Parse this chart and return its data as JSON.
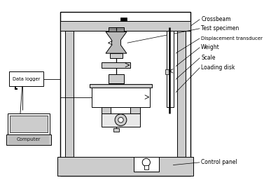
{
  "bg_color": "#ffffff",
  "line_color": "#000000",
  "gray_fill": "#bbbbbb",
  "light_gray": "#cccccc",
  "dark_gray": "#888888",
  "lighter_gray": "#e8e8e8",
  "labels": {
    "crossbeam": "Crossbeam",
    "test_specimen": "Test specimen",
    "displacement_transducer": "Displacement transducer",
    "weight": "Weight",
    "scale": "Scale",
    "loading_disk": "Loading disk",
    "control_panel": "Control panel",
    "data_logger": "Data logger",
    "computer": "Computer"
  },
  "figsize": [
    3.87,
    2.67
  ],
  "dpi": 100
}
